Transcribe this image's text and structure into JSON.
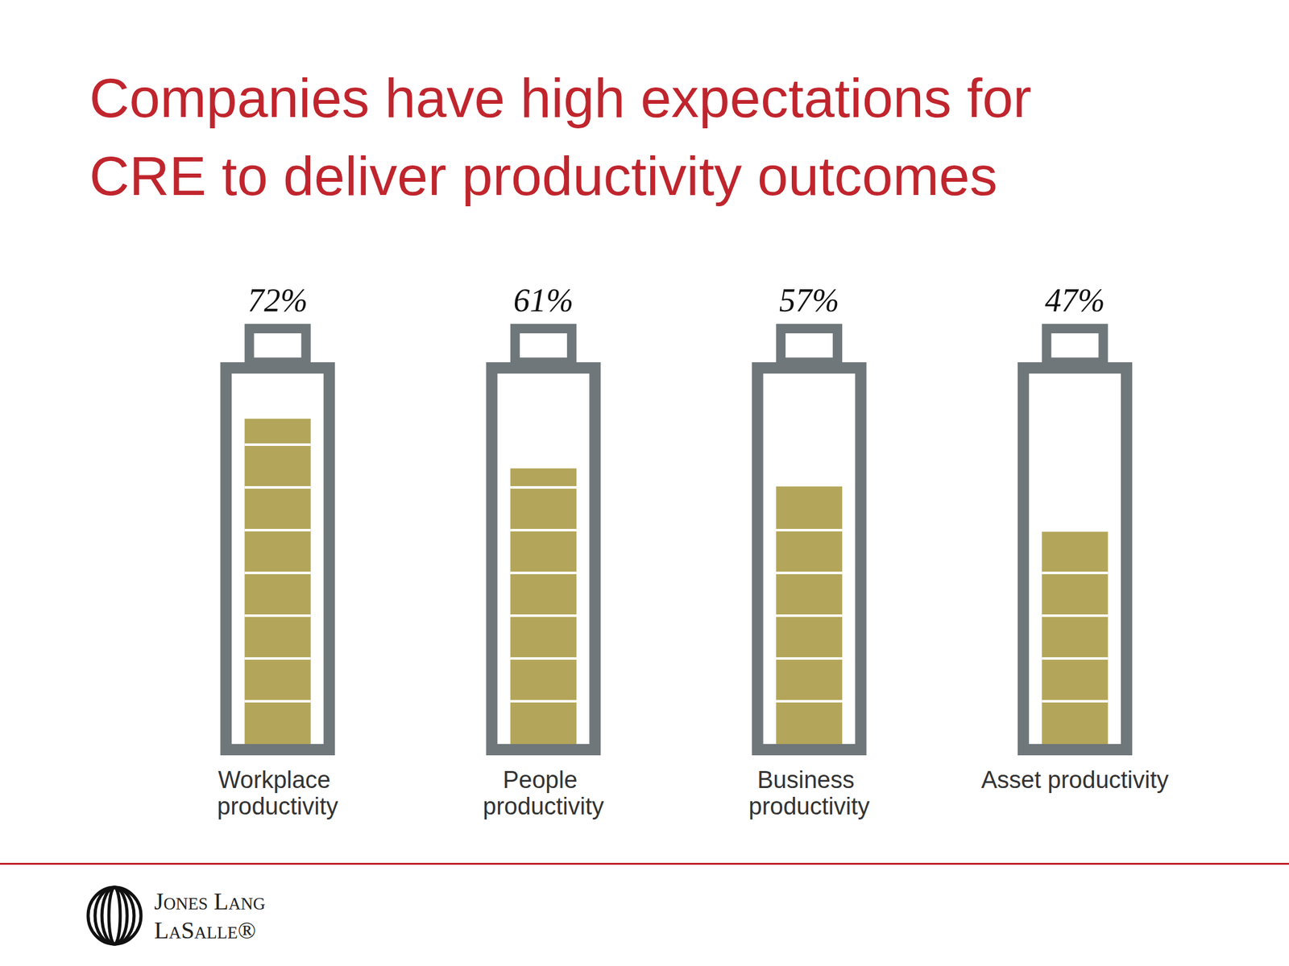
{
  "chart_data": {
    "type": "bar",
    "title": "Companies have high expectations for CRE to deliver productivity outcomes",
    "categories": [
      "Workplace productivity",
      "People productivity",
      "Business productivity",
      "Asset productivity"
    ],
    "values": [
      72,
      61,
      57,
      47
    ],
    "value_labels": [
      "72%",
      "61%",
      "57%",
      "47%"
    ],
    "data_labels": true,
    "color": "#b3a65a",
    "ylim": [
      0,
      82
    ],
    "tick_labels": "x",
    "grid": false
  },
  "footer": {
    "logo": [
      "Jones Lang",
      "LaSalle®"
    ]
  }
}
